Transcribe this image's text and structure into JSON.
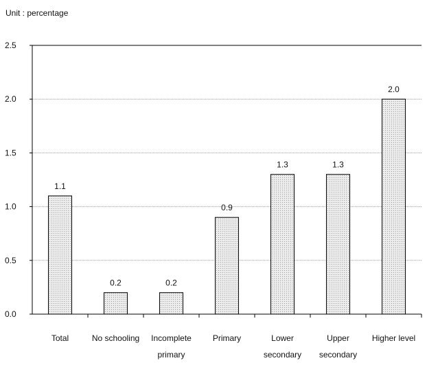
{
  "unit_label": "Unit : percentage",
  "chart_data": {
    "type": "bar",
    "title": "",
    "xlabel": "",
    "ylabel": "",
    "categories": [
      [
        "Total"
      ],
      [
        "No schooling"
      ],
      [
        "Incomplete",
        "primary"
      ],
      [
        "Primary"
      ],
      [
        "Lower",
        "secondary"
      ],
      [
        "Upper",
        "secondary"
      ],
      [
        "Higher level"
      ]
    ],
    "values": [
      1.1,
      0.2,
      0.2,
      0.9,
      1.3,
      1.3,
      2.0
    ],
    "data_labels": [
      "1.1",
      "0.2",
      "0.2",
      "0.9",
      "1.3",
      "1.3",
      "2.0"
    ],
    "ylim": [
      0,
      2.5
    ],
    "yticks": [
      "0.0",
      "0.5",
      "1.0",
      "1.5",
      "2.0",
      "2.5"
    ],
    "grid": true,
    "bar_fill": "#e4e4e4",
    "bar_stroke": "#000000",
    "grid_color": "#9a9a9a"
  }
}
